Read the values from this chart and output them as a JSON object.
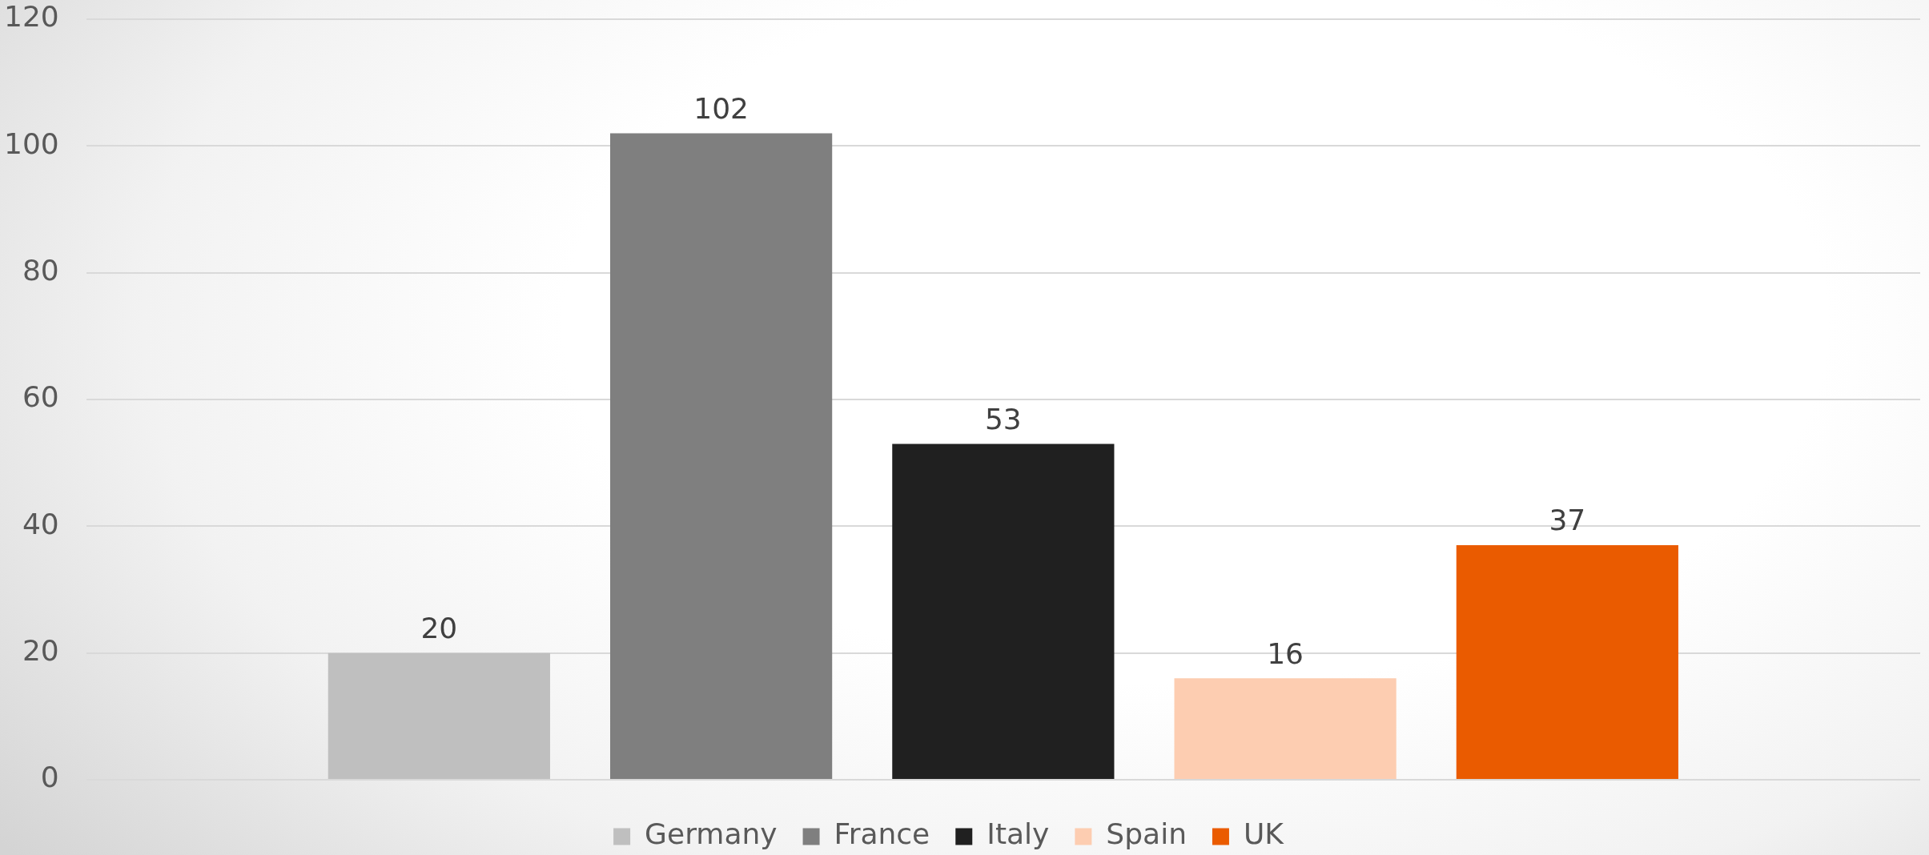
{
  "chart_data": {
    "type": "bar",
    "categories": [
      null
    ],
    "series": [
      {
        "name": "Germany",
        "color": "#bfbfbf",
        "values": [
          20
        ]
      },
      {
        "name": "France",
        "color": "#7f7f7f",
        "values": [
          102
        ]
      },
      {
        "name": "Italy",
        "color": "#202020",
        "values": [
          53
        ]
      },
      {
        "name": "Spain",
        "color": "#fdcdb1",
        "values": [
          16
        ]
      },
      {
        "name": "UK",
        "color": "#ea5b00",
        "values": [
          37
        ]
      }
    ],
    "ylim": [
      0,
      120
    ],
    "yticks": [
      0,
      20,
      40,
      60,
      80,
      100,
      120
    ],
    "grid": "y",
    "legend": "bottom",
    "data_labels": true,
    "tick_labels": "y"
  }
}
